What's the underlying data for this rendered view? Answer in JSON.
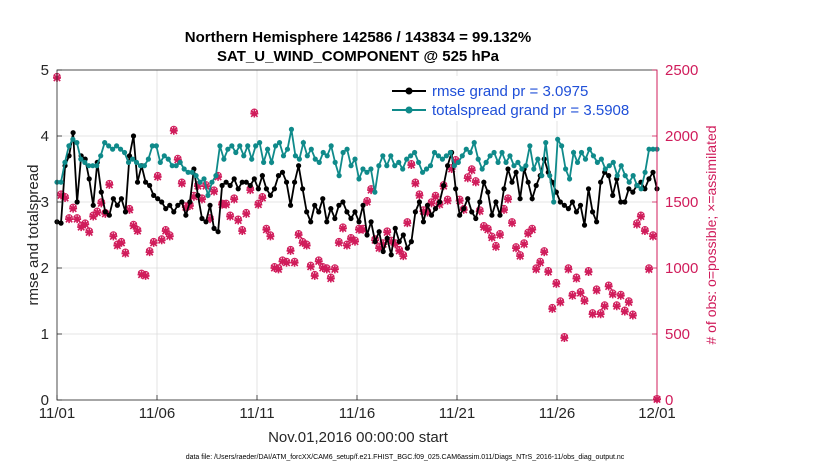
{
  "chart_data": {
    "type": "line",
    "title": "Northern Hemisphere 142586 / 143834 = 99.132%",
    "subtitle": "SAT_U_WIND_COMPONENT @ 525 hPa",
    "xlabel": "Nov.01,2016 00:00:00 start",
    "ylabel": "rmse and totalspread",
    "ylabel_right": "# of obs: o=possible; ×=assimilated",
    "footer": "data file: /Users/raeder/DAI/ATM_forcXX/CAM6_setup/f.e21.FHIST_BGC.f09_025.CAM6assim.011/Diags_NTrS_2016-11/obs_diag_output.nc",
    "x_ticks": [
      "11/01",
      "11/06",
      "11/11",
      "11/16",
      "11/21",
      "11/26",
      "12/01"
    ],
    "y_ticks": [
      "0",
      "1",
      "2",
      "3",
      "4",
      "5"
    ],
    "y_right_ticks": [
      "0",
      "500",
      "1000",
      "1500",
      "2000",
      "2500"
    ],
    "xlim": [
      0,
      30
    ],
    "ylim": [
      0,
      5
    ],
    "ylim_right": [
      0,
      2500
    ],
    "grid": true,
    "legend_position": "top-right",
    "series": [
      {
        "name": "rmse grand pr = 3.0975",
        "color": "#000000",
        "axis": "left",
        "values": [
          2.7,
          2.68,
          3.55,
          3.7,
          4.05,
          3.0,
          3.7,
          3.65,
          3.35,
          2.95,
          3.6,
          3.15,
          2.85,
          2.8,
          3.05,
          2.95,
          3.05,
          2.85,
          3.7,
          4.0,
          3.3,
          3.55,
          3.3,
          3.25,
          3.1,
          3.05,
          3.0,
          2.9,
          2.95,
          2.85,
          2.95,
          3.0,
          2.8,
          3.0,
          3.5,
          3.1,
          2.75,
          2.7,
          2.95,
          2.6,
          2.55,
          3.25,
          3.3,
          3.25,
          3.35,
          3.2,
          3.3,
          3.3,
          3.25,
          3.35,
          3.2,
          3.4,
          3.2,
          3.1,
          3.2,
          3.4,
          3.45,
          3.3,
          2.95,
          3.3,
          3.55,
          3.2,
          2.85,
          2.7,
          2.95,
          2.85,
          3.05,
          2.7,
          2.9,
          2.75,
          2.95,
          3.0,
          2.85,
          2.75,
          2.85,
          2.7,
          2.95,
          2.5,
          2.7,
          2.4,
          2.55,
          2.25,
          2.45,
          2.2,
          2.6,
          2.4,
          2.5,
          2.3,
          2.4,
          2.85,
          3.0,
          2.7,
          2.95,
          2.8,
          2.9,
          3.0,
          3.25,
          3.55,
          3.75,
          3.2,
          2.8,
          2.9,
          3.05,
          2.85,
          2.75,
          3.0,
          3.3,
          3.15,
          2.8,
          3.0,
          2.8,
          3.2,
          3.5,
          3.3,
          3.45,
          3.05,
          3.5,
          3.3,
          3.05,
          3.25,
          3.4,
          3.65,
          3.45,
          3.3,
          3.15,
          3.0,
          2.95,
          2.9,
          3.0,
          2.85,
          2.95,
          2.65,
          3.2,
          2.85,
          2.7,
          3.3,
          3.45,
          3.4,
          3.1,
          3.35,
          3.0,
          3.0,
          3.2,
          3.15,
          3.25,
          3.3,
          3.2,
          3.35,
          3.45,
          3.2
        ]
      },
      {
        "name": "totalspread grand pr = 3.5908",
        "color": "#0f8a8a",
        "axis": "left",
        "values": [
          3.3,
          3.3,
          3.6,
          3.85,
          3.95,
          3.9,
          3.65,
          3.6,
          3.55,
          3.55,
          3.55,
          3.7,
          3.9,
          3.85,
          3.8,
          3.85,
          3.8,
          3.75,
          3.6,
          3.65,
          3.6,
          3.55,
          3.55,
          3.65,
          3.85,
          3.85,
          3.6,
          3.7,
          3.65,
          3.55,
          3.55,
          3.6,
          3.5,
          3.45,
          3.45,
          3.4,
          3.3,
          3.35,
          3.1,
          3.3,
          3.4,
          3.85,
          3.65,
          3.8,
          3.85,
          3.75,
          3.85,
          3.7,
          3.85,
          3.65,
          3.85,
          3.9,
          3.6,
          3.8,
          3.6,
          3.85,
          3.9,
          3.7,
          3.8,
          4.1,
          3.7,
          3.65,
          3.9,
          3.7,
          3.8,
          3.65,
          3.6,
          3.75,
          3.7,
          3.85,
          3.6,
          3.4,
          3.75,
          3.8,
          3.55,
          3.65,
          3.35,
          3.5,
          3.45,
          3.5,
          3.15,
          3.55,
          3.7,
          3.55,
          3.7,
          3.55,
          3.6,
          3.5,
          3.65,
          3.7,
          3.75,
          3.6,
          3.45,
          3.5,
          3.55,
          3.75,
          3.7,
          3.65,
          3.7,
          3.75,
          3.55,
          3.6,
          3.7,
          3.8,
          3.75,
          3.9,
          3.65,
          3.5,
          3.6,
          3.7,
          3.75,
          3.6,
          3.75,
          3.6,
          3.7,
          3.55,
          3.6,
          3.5,
          3.55,
          3.85,
          3.5,
          3.65,
          3.4,
          3.9,
          3.4,
          3.0,
          3.95,
          3.85,
          3.5,
          3.35,
          3.75,
          3.6,
          3.75,
          3.65,
          3.8,
          3.7,
          3.6,
          3.65,
          3.5,
          3.55,
          3.6,
          3.4,
          3.55,
          3.4,
          3.3,
          3.4,
          3.25,
          3.2,
          3.45,
          3.8,
          3.8,
          3.8
        ]
      },
      {
        "name": "obs possible",
        "color": "#d01c5b",
        "axis": "right",
        "marker": "o",
        "values": [
          2450,
          1560,
          1540,
          1380,
          1460,
          1380,
          1320,
          1340,
          1280,
          1400,
          1430,
          1500,
          1420,
          1640,
          1250,
          1180,
          1200,
          1120,
          1450,
          1330,
          1290,
          960,
          950,
          1130,
          1200,
          1700,
          1220,
          1290,
          1250,
          2050,
          1830,
          1650,
          1470,
          1480,
          1550,
          1630,
          1530,
          1630,
          1380,
          1590,
          1700,
          1490,
          1490,
          1400,
          1530,
          1370,
          1290,
          1420,
          1600,
          2180,
          1490,
          1540,
          1300,
          1250,
          1010,
          1000,
          1060,
          1050,
          1140,
          1050,
          1260,
          1200,
          1180,
          1020,
          950,
          1060,
          1010,
          1000,
          930,
          1000,
          1200,
          1310,
          1180,
          1230,
          1210,
          1300,
          1300,
          1510,
          1600,
          1220,
          1160,
          1190,
          1280,
          1210,
          1190,
          1140,
          1100,
          1350,
          1790,
          1650,
          1560,
          1440,
          1430,
          1500,
          1550,
          1490,
          1630,
          1520,
          1760,
          1820,
          1520,
          1450,
          1690,
          1750,
          1660,
          1440,
          1320,
          1300,
          1240,
          1170,
          1260,
          1450,
          1530,
          1350,
          1160,
          1100,
          1190,
          1270,
          1300,
          1000,
          1050,
          1130,
          980,
          700,
          890,
          750,
          480,
          1000,
          800,
          930,
          820,
          760,
          980,
          660,
          840,
          660,
          720,
          870,
          810,
          720,
          800,
          680,
          750,
          650,
          1340,
          1400,
          1290,
          1000,
          1250,
          10
        ]
      },
      {
        "name": "obs assimilated",
        "color": "#d01c5b",
        "axis": "right",
        "marker": "x",
        "values": [
          2440,
          1550,
          1530,
          1370,
          1450,
          1370,
          1310,
          1330,
          1270,
          1390,
          1420,
          1490,
          1410,
          1630,
          1240,
          1170,
          1190,
          1110,
          1440,
          1320,
          1280,
          950,
          940,
          1120,
          1190,
          1690,
          1210,
          1280,
          1240,
          2040,
          1820,
          1640,
          1460,
          1470,
          1540,
          1620,
          1520,
          1620,
          1370,
          1580,
          1690,
          1480,
          1480,
          1390,
          1520,
          1360,
          1280,
          1410,
          1590,
          2170,
          1480,
          1530,
          1290,
          1240,
          1000,
          990,
          1050,
          1040,
          1130,
          1040,
          1250,
          1190,
          1170,
          1010,
          940,
          1050,
          1000,
          990,
          920,
          990,
          1190,
          1300,
          1170,
          1220,
          1200,
          1290,
          1290,
          1500,
          1590,
          1210,
          1150,
          1180,
          1270,
          1200,
          1180,
          1130,
          1090,
          1340,
          1780,
          1640,
          1550,
          1430,
          1420,
          1490,
          1540,
          1480,
          1620,
          1510,
          1750,
          1810,
          1510,
          1440,
          1680,
          1740,
          1650,
          1430,
          1310,
          1290,
          1230,
          1160,
          1250,
          1440,
          1520,
          1340,
          1150,
          1090,
          1180,
          1260,
          1290,
          990,
          1040,
          1120,
          970,
          690,
          880,
          740,
          470,
          990,
          790,
          920,
          810,
          750,
          970,
          650,
          830,
          650,
          710,
          860,
          800,
          710,
          790,
          670,
          740,
          640,
          1330,
          1390,
          1280,
          990,
          1240,
          5
        ]
      }
    ]
  }
}
